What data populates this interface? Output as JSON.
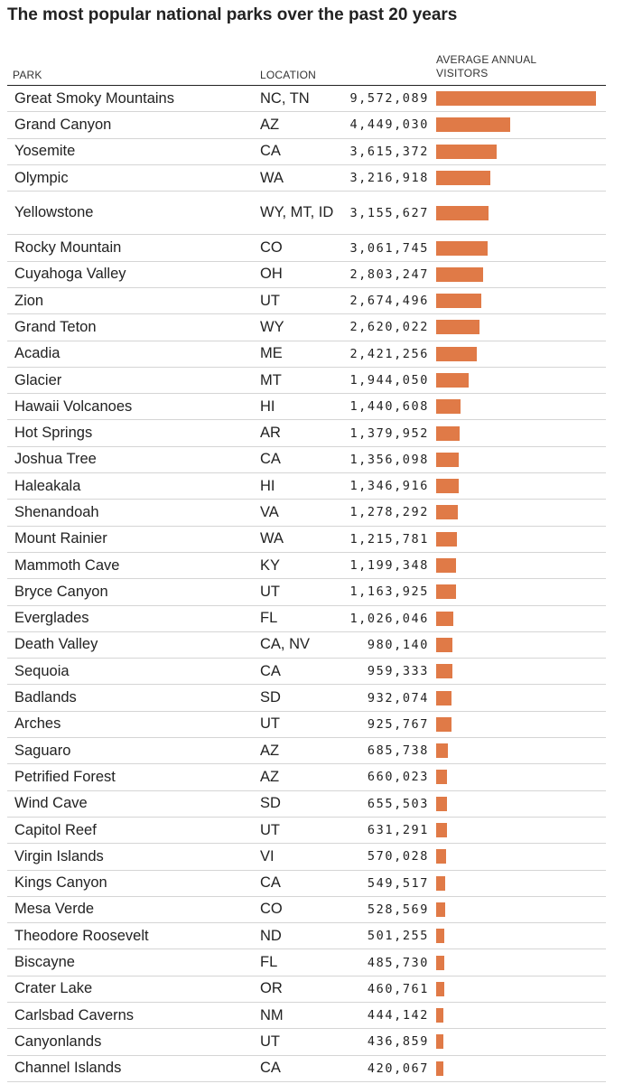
{
  "chart_data": {
    "type": "table",
    "title": "The most popular national parks over the past 20 years",
    "columns": [
      "PARK",
      "LOCATION",
      "AVERAGE ANNUAL VISITORS"
    ],
    "visitors_header_lines": [
      "AVERAGE ANNUAL",
      "VISITORS"
    ],
    "bar_color": "#e07a47",
    "max_value": 9572089,
    "rows": [
      {
        "park": "Great Smoky Mountains",
        "location": "NC, TN",
        "value": 9572089,
        "display": "9,572,089"
      },
      {
        "park": "Grand Canyon",
        "location": "AZ",
        "value": 4449030,
        "display": "4,449,030"
      },
      {
        "park": "Yosemite",
        "location": "CA",
        "value": 3615372,
        "display": "3,615,372"
      },
      {
        "park": "Olympic",
        "location": "WA",
        "value": 3216918,
        "display": "3,216,918"
      },
      {
        "park": "Yellowstone",
        "location": "WY, MT, ID",
        "value": 3155627,
        "display": "3,155,627"
      },
      {
        "park": "Rocky Mountain",
        "location": "CO",
        "value": 3061745,
        "display": "3,061,745"
      },
      {
        "park": "Cuyahoga Valley",
        "location": "OH",
        "value": 2803247,
        "display": "2,803,247"
      },
      {
        "park": "Zion",
        "location": "UT",
        "value": 2674496,
        "display": "2,674,496"
      },
      {
        "park": "Grand Teton",
        "location": "WY",
        "value": 2620022,
        "display": "2,620,022"
      },
      {
        "park": "Acadia",
        "location": "ME",
        "value": 2421256,
        "display": "2,421,256"
      },
      {
        "park": "Glacier",
        "location": "MT",
        "value": 1944050,
        "display": "1,944,050"
      },
      {
        "park": "Hawaii Volcanoes",
        "location": "HI",
        "value": 1440608,
        "display": "1,440,608"
      },
      {
        "park": "Hot Springs",
        "location": "AR",
        "value": 1379952,
        "display": "1,379,952"
      },
      {
        "park": "Joshua Tree",
        "location": "CA",
        "value": 1356098,
        "display": "1,356,098"
      },
      {
        "park": "Haleakala",
        "location": "HI",
        "value": 1346916,
        "display": "1,346,916"
      },
      {
        "park": "Shenandoah",
        "location": "VA",
        "value": 1278292,
        "display": "1,278,292"
      },
      {
        "park": "Mount Rainier",
        "location": "WA",
        "value": 1215781,
        "display": "1,215,781"
      },
      {
        "park": "Mammoth Cave",
        "location": "KY",
        "value": 1199348,
        "display": "1,199,348"
      },
      {
        "park": "Bryce Canyon",
        "location": "UT",
        "value": 1163925,
        "display": "1,163,925"
      },
      {
        "park": "Everglades",
        "location": "FL",
        "value": 1026046,
        "display": "1,026,046"
      },
      {
        "park": "Death Valley",
        "location": "CA, NV",
        "value": 980140,
        "display": "980,140"
      },
      {
        "park": "Sequoia",
        "location": "CA",
        "value": 959333,
        "display": "959,333"
      },
      {
        "park": "Badlands",
        "location": "SD",
        "value": 932074,
        "display": "932,074"
      },
      {
        "park": "Arches",
        "location": "UT",
        "value": 925767,
        "display": "925,767"
      },
      {
        "park": "Saguaro",
        "location": "AZ",
        "value": 685738,
        "display": "685,738"
      },
      {
        "park": "Petrified Forest",
        "location": "AZ",
        "value": 660023,
        "display": "660,023"
      },
      {
        "park": "Wind Cave",
        "location": "SD",
        "value": 655503,
        "display": "655,503"
      },
      {
        "park": "Capitol Reef",
        "location": "UT",
        "value": 631291,
        "display": "631,291"
      },
      {
        "park": "Virgin Islands",
        "location": "VI",
        "value": 570028,
        "display": "570,028"
      },
      {
        "park": "Kings Canyon",
        "location": "CA",
        "value": 549517,
        "display": "549,517"
      },
      {
        "park": "Mesa Verde",
        "location": "CO",
        "value": 528569,
        "display": "528,569"
      },
      {
        "park": "Theodore Roosevelt",
        "location": "ND",
        "value": 501255,
        "display": "501,255"
      },
      {
        "park": "Biscayne",
        "location": "FL",
        "value": 485730,
        "display": "485,730"
      },
      {
        "park": "Crater Lake",
        "location": "OR",
        "value": 460761,
        "display": "460,761"
      },
      {
        "park": "Carlsbad Caverns",
        "location": "NM",
        "value": 444142,
        "display": "444,142"
      },
      {
        "park": "Canyonlands",
        "location": "UT",
        "value": 436859,
        "display": "436,859"
      },
      {
        "park": "Channel Islands",
        "location": "CA",
        "value": 420067,
        "display": "420,067"
      }
    ]
  }
}
